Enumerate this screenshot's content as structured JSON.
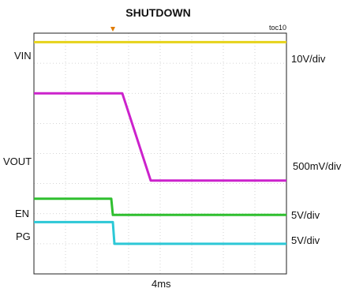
{
  "chart_data": {
    "type": "line",
    "title": "SHUTDOWN",
    "figure_id": "toc10",
    "xlabel": "4ms",
    "time_per_div_ms": 4,
    "divisions": {
      "x": 8,
      "y": 8
    },
    "x_range_div": [
      0,
      8
    ],
    "grid": "dotted",
    "trigger_marker_div": 2.5,
    "series": [
      {
        "name": "VIN",
        "scale": "10V/div",
        "color": "#e6d21a",
        "points": [
          [
            0,
            7.7
          ],
          [
            8,
            7.7
          ]
        ]
      },
      {
        "name": "VOUT",
        "scale": "500mV/div",
        "color": "#cc22cc",
        "points": [
          [
            0,
            6.0
          ],
          [
            2.8,
            6.0
          ],
          [
            3.7,
            3.1
          ],
          [
            8,
            3.1
          ]
        ]
      },
      {
        "name": "EN",
        "scale": "5V/div",
        "color": "#2fbf2f",
        "points": [
          [
            0,
            2.5
          ],
          [
            2.45,
            2.5
          ],
          [
            2.5,
            1.96
          ],
          [
            8,
            1.96
          ]
        ]
      },
      {
        "name": "PG",
        "scale": "5V/div",
        "color": "#2cc8d6",
        "points": [
          [
            0,
            1.72
          ],
          [
            2.5,
            1.72
          ],
          [
            2.55,
            1.0
          ],
          [
            8,
            1.0
          ]
        ]
      }
    ]
  }
}
